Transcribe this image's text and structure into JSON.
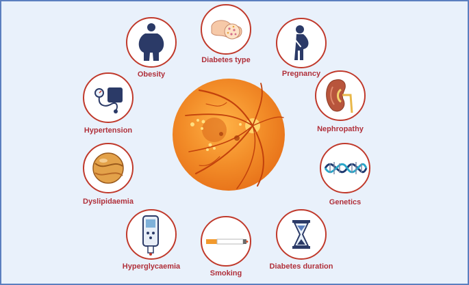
{
  "factors": [
    {
      "label": "Diabetes type",
      "icon": "pancreas-icon"
    },
    {
      "label": "Pregnancy",
      "icon": "pregnant-woman-icon"
    },
    {
      "label": "Nephropathy",
      "icon": "kidney-icon"
    },
    {
      "label": "Genetics",
      "icon": "dna-icon"
    },
    {
      "label": "Diabetes duration",
      "icon": "hourglass-icon"
    },
    {
      "label": "Smoking",
      "icon": "cigarette-icon"
    },
    {
      "label": "Hyperglycaemia",
      "icon": "glucose-meter-icon"
    },
    {
      "label": "Dyslipidaemia",
      "icon": "lipid-droplet-icon"
    },
    {
      "label": "Hypertension",
      "icon": "blood-pressure-monitor-icon"
    },
    {
      "label": "Obesity",
      "icon": "obese-person-icon"
    }
  ],
  "colors": {
    "ring": "#c0392b",
    "label": "#b0303a",
    "background": "#e9f1fb",
    "retina": "#f28c28",
    "vessel": "#c2410c"
  },
  "center": {
    "icon": "retina-fundus-icon"
  }
}
